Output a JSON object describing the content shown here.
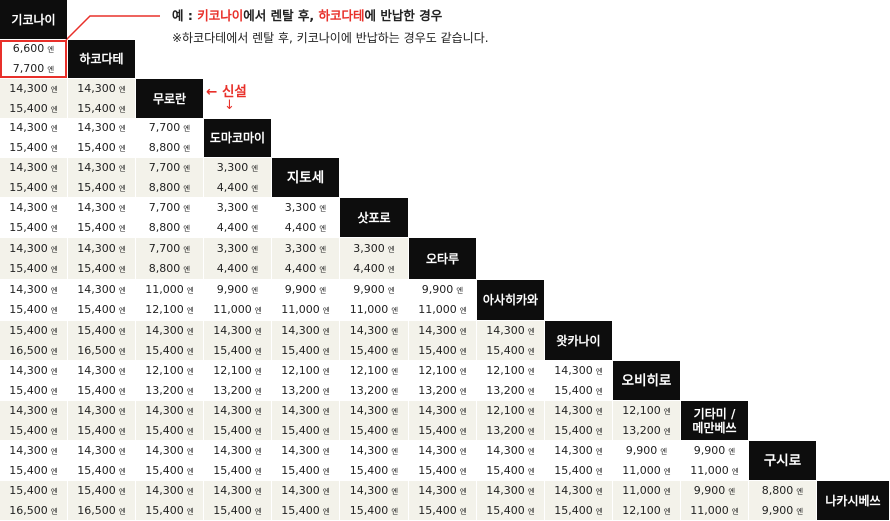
{
  "annotation": {
    "prefix": "예 : ",
    "from": "키코나이",
    "mid": "에서 렌탈 후, ",
    "to": "하코다테",
    "suffix": "에 반납한 경우",
    "reverse": "※하코다테에서 렌탈 후, 키코나이에 반납하는 경우도 같습니다."
  },
  "new_label": {
    "text": "← 신설",
    "arrow": "↓"
  },
  "yen": "엔",
  "stations": [
    "기코나이",
    "하코다테",
    "무로란",
    "도마코마이",
    "지토세",
    "삿포로",
    "오타루",
    "아사히카와",
    "왓카나이",
    "오비히로",
    "기타미 / 메만베쓰",
    "구시로",
    "나카시베쓰"
  ],
  "fares": [
    [
      [
        "6,600",
        "7,700"
      ]
    ],
    [
      [
        "14,300",
        "15,400"
      ],
      [
        "14,300",
        "15,400"
      ]
    ],
    [
      [
        "14,300",
        "15,400"
      ],
      [
        "14,300",
        "15,400"
      ],
      [
        "7,700",
        "8,800"
      ]
    ],
    [
      [
        "14,300",
        "15,400"
      ],
      [
        "14,300",
        "15,400"
      ],
      [
        "7,700",
        "8,800"
      ],
      [
        "3,300",
        "4,400"
      ]
    ],
    [
      [
        "14,300",
        "15,400"
      ],
      [
        "14,300",
        "15,400"
      ],
      [
        "7,700",
        "8,800"
      ],
      [
        "3,300",
        "4,400"
      ],
      [
        "3,300",
        "4,400"
      ]
    ],
    [
      [
        "14,300",
        "15,400"
      ],
      [
        "14,300",
        "15,400"
      ],
      [
        "7,700",
        "8,800"
      ],
      [
        "3,300",
        "4,400"
      ],
      [
        "3,300",
        "4,400"
      ],
      [
        "3,300",
        "4,400"
      ]
    ],
    [
      [
        "14,300",
        "15,400"
      ],
      [
        "14,300",
        "15,400"
      ],
      [
        "11,000",
        "12,100"
      ],
      [
        "9,900",
        "11,000"
      ],
      [
        "9,900",
        "11,000"
      ],
      [
        "9,900",
        "11,000"
      ],
      [
        "9,900",
        "11,000"
      ]
    ],
    [
      [
        "15,400",
        "16,500"
      ],
      [
        "15,400",
        "16,500"
      ],
      [
        "14,300",
        "15,400"
      ],
      [
        "14,300",
        "15,400"
      ],
      [
        "14,300",
        "15,400"
      ],
      [
        "14,300",
        "15,400"
      ],
      [
        "14,300",
        "15,400"
      ],
      [
        "14,300",
        "15,400"
      ]
    ],
    [
      [
        "14,300",
        "15,400"
      ],
      [
        "14,300",
        "15,400"
      ],
      [
        "12,100",
        "13,200"
      ],
      [
        "12,100",
        "13,200"
      ],
      [
        "12,100",
        "13,200"
      ],
      [
        "12,100",
        "13,200"
      ],
      [
        "12,100",
        "13,200"
      ],
      [
        "12,100",
        "13,200"
      ],
      [
        "14,300",
        "15,400"
      ]
    ],
    [
      [
        "14,300",
        "15,400"
      ],
      [
        "14,300",
        "15,400"
      ],
      [
        "14,300",
        "15,400"
      ],
      [
        "14,300",
        "15,400"
      ],
      [
        "14,300",
        "15,400"
      ],
      [
        "14,300",
        "15,400"
      ],
      [
        "14,300",
        "15,400"
      ],
      [
        "12,100",
        "13,200"
      ],
      [
        "14,300",
        "15,400"
      ],
      [
        "12,100",
        "13,200"
      ]
    ],
    [
      [
        "14,300",
        "15,400"
      ],
      [
        "14,300",
        "15,400"
      ],
      [
        "14,300",
        "15,400"
      ],
      [
        "14,300",
        "15,400"
      ],
      [
        "14,300",
        "15,400"
      ],
      [
        "14,300",
        "15,400"
      ],
      [
        "14,300",
        "15,400"
      ],
      [
        "14,300",
        "15,400"
      ],
      [
        "14,300",
        "15,400"
      ],
      [
        "9,900",
        "11,000"
      ],
      [
        "9,900",
        "11,000"
      ]
    ],
    [
      [
        "15,400",
        "16,500"
      ],
      [
        "15,400",
        "16,500"
      ],
      [
        "14,300",
        "15,400"
      ],
      [
        "14,300",
        "15,400"
      ],
      [
        "14,300",
        "15,400"
      ],
      [
        "14,300",
        "15,400"
      ],
      [
        "14,300",
        "15,400"
      ],
      [
        "14,300",
        "15,400"
      ],
      [
        "14,300",
        "15,400"
      ],
      [
        "11,000",
        "12,100"
      ],
      [
        "9,900",
        "11,000"
      ],
      [
        "8,800",
        "9,900"
      ]
    ]
  ]
}
